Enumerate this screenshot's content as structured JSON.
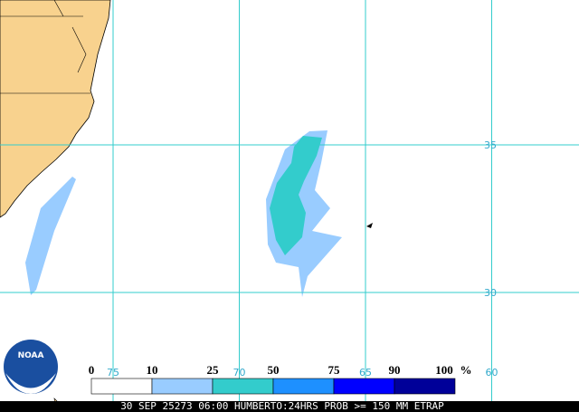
{
  "map": {
    "latitudes": [
      35,
      30
    ],
    "longitudes": [
      75,
      70,
      65,
      60
    ],
    "legend": {
      "breaks": [
        0,
        10,
        25,
        50,
        75,
        90,
        100
      ],
      "unit": "%",
      "colors": [
        "#ffffff",
        "#99ccff",
        "#33cccc",
        "#1e90ff",
        "#0000ff",
        "#000099"
      ]
    },
    "logo": "NOAA",
    "footer": "30 SEP 25273 06:00 HUMBERTO:24HRS PROB >= 150 MM ETRAP"
  }
}
